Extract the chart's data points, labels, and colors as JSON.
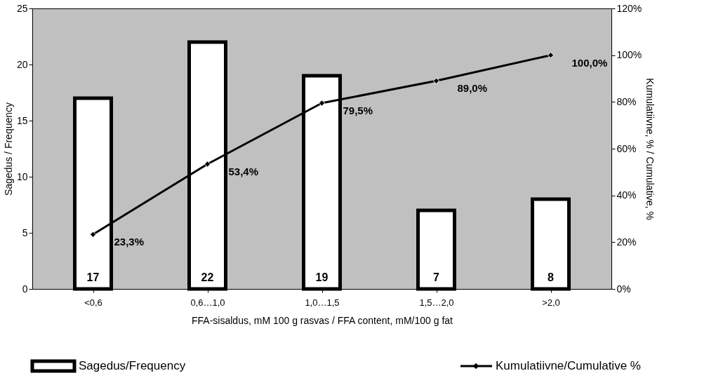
{
  "chart_data": {
    "type": "bar",
    "xlabel": "FFA-sisaldus, mM 100 g rasvas / FFA content, mM/100 g fat",
    "ylabel": "Sagedus / Frequency",
    "y2label": "Kumulatiivne, % / Cumulative, %",
    "categories": [
      "<0,6",
      "0,6…1,0",
      "1,0…1,5",
      "1,5…2,0",
      ">2,0"
    ],
    "series": [
      {
        "name": "Sagedus/Frequency",
        "color": "#ffffff",
        "values": [
          17,
          22,
          19,
          7,
          8
        ],
        "value_labels": [
          "17",
          "22",
          "19",
          "7",
          "8"
        ]
      },
      {
        "name": "Kumulatiivne/Cumulative %",
        "type": "line",
        "axis": "y2",
        "color": "#000000",
        "values": [
          23.3,
          53.4,
          79.5,
          89.0,
          100.0
        ],
        "value_labels": [
          "23,3%",
          "53,4%",
          "79,5%",
          "89,0%",
          "100,0%"
        ]
      }
    ],
    "ylim": [
      0,
      25
    ],
    "yticks": [
      0,
      5,
      10,
      15,
      20,
      25
    ],
    "y2lim": [
      0,
      120
    ],
    "y2ticks": [
      {
        "value": 0,
        "label": "0%"
      },
      {
        "value": 20,
        "label": "20%"
      },
      {
        "value": 40,
        "label": "40%"
      },
      {
        "value": 60,
        "label": "60%"
      },
      {
        "value": 80,
        "label": "80%"
      },
      {
        "value": 100,
        "label": "100%"
      },
      {
        "value": 120,
        "label": "120%"
      }
    ],
    "grid": false,
    "legend": "bottom",
    "marker": "diamond",
    "line_style": "solid"
  }
}
